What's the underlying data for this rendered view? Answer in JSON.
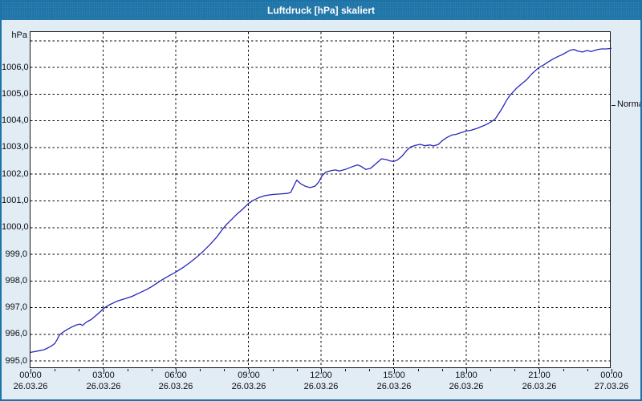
{
  "window": {
    "title": "Luftdruck [hPa] skaliert"
  },
  "colors": {
    "title_bar": "#1d73a7",
    "title_text": "#ffffff",
    "window_bg": "#e2ecf5",
    "plot_bg": "#ffffff",
    "line": "#2727b9",
    "grid": "#000000",
    "axis_frame": "#14141c",
    "label_text": "#0c0c14"
  },
  "chart_data": {
    "type": "line",
    "title": "Luftdruck [hPa] skaliert",
    "xlabel": "",
    "ylabel": "hPa",
    "legend": "none",
    "grid": "dashed",
    "y_axis": {
      "unit_label": "hPa",
      "range_min": 994.7,
      "range_max": 1007.33,
      "gridline_values": [
        995,
        996,
        997,
        998,
        999,
        1000,
        1001,
        1002,
        1003,
        1004,
        1005,
        1006,
        1007
      ],
      "ticks": [
        {
          "value": 995,
          "label": "995,0"
        },
        {
          "value": 996,
          "label": "996,0"
        },
        {
          "value": 997,
          "label": "997,0"
        },
        {
          "value": 998,
          "label": "998,0"
        },
        {
          "value": 999,
          "label": "999,0"
        },
        {
          "value": 1000,
          "label": "1000,0"
        },
        {
          "value": 1001,
          "label": "1001,0"
        },
        {
          "value": 1002,
          "label": "1002,0"
        },
        {
          "value": 1003,
          "label": "1003,0"
        },
        {
          "value": 1004,
          "label": "1004,0"
        },
        {
          "value": 1005,
          "label": "1005,0"
        },
        {
          "value": 1006,
          "label": "1006,0"
        }
      ]
    },
    "x_axis": {
      "hours_span": 24,
      "minor_tick_every_hours": 1,
      "gridline_hours": [
        3,
        6,
        9,
        12,
        15,
        18,
        21
      ],
      "major_ticks": [
        {
          "hour": 0,
          "time": "00:00",
          "date": "26.03.26"
        },
        {
          "hour": 3,
          "time": "03:00",
          "date": "26.03.26"
        },
        {
          "hour": 6,
          "time": "06:00",
          "date": "26.03.26"
        },
        {
          "hour": 9,
          "time": "09:00",
          "date": "26.03.26"
        },
        {
          "hour": 12,
          "time": "12:00",
          "date": "26.03.26"
        },
        {
          "hour": 15,
          "time": "15:00",
          "date": "26.03.26"
        },
        {
          "hour": 18,
          "time": "18:00",
          "date": "26.03.26"
        },
        {
          "hour": 21,
          "time": "21:00",
          "date": "26.03.26"
        },
        {
          "hour": 24,
          "time": "00:00",
          "date": "27.03.26"
        }
      ]
    },
    "normal_marker": {
      "label": "Normal",
      "value": 1004.6
    },
    "series": [
      {
        "name": "Luftdruck",
        "points": [
          [
            0,
            995.32
          ],
          [
            0.3,
            995.37
          ],
          [
            0.55,
            995.42
          ],
          [
            0.7,
            995.48
          ],
          [
            0.85,
            995.55
          ],
          [
            1.0,
            995.65
          ],
          [
            1.1,
            995.8
          ],
          [
            1.2,
            995.98
          ],
          [
            1.35,
            996.08
          ],
          [
            1.5,
            996.17
          ],
          [
            1.7,
            996.27
          ],
          [
            1.9,
            996.35
          ],
          [
            2.05,
            996.38
          ],
          [
            2.15,
            996.33
          ],
          [
            2.3,
            996.45
          ],
          [
            2.5,
            996.55
          ],
          [
            2.7,
            996.7
          ],
          [
            2.85,
            996.82
          ],
          [
            3.0,
            996.95
          ],
          [
            3.1,
            997.02
          ],
          [
            3.3,
            997.12
          ],
          [
            3.6,
            997.25
          ],
          [
            3.9,
            997.33
          ],
          [
            4.2,
            997.42
          ],
          [
            4.5,
            997.55
          ],
          [
            4.8,
            997.68
          ],
          [
            5.0,
            997.78
          ],
          [
            5.2,
            997.9
          ],
          [
            5.4,
            998.02
          ],
          [
            5.6,
            998.13
          ],
          [
            5.8,
            998.23
          ],
          [
            6.0,
            998.33
          ],
          [
            6.3,
            998.5
          ],
          [
            6.6,
            998.7
          ],
          [
            6.9,
            998.92
          ],
          [
            7.1,
            999.08
          ],
          [
            7.4,
            999.35
          ],
          [
            7.7,
            999.65
          ],
          [
            7.9,
            999.9
          ],
          [
            8.1,
            1000.12
          ],
          [
            8.3,
            1000.3
          ],
          [
            8.5,
            1000.48
          ],
          [
            8.75,
            1000.68
          ],
          [
            9.0,
            1000.9
          ],
          [
            9.2,
            1001.02
          ],
          [
            9.45,
            1001.13
          ],
          [
            9.7,
            1001.2
          ],
          [
            10.0,
            1001.24
          ],
          [
            10.3,
            1001.26
          ],
          [
            10.6,
            1001.28
          ],
          [
            10.75,
            1001.32
          ],
          [
            10.9,
            1001.6
          ],
          [
            11.0,
            1001.78
          ],
          [
            11.15,
            1001.65
          ],
          [
            11.35,
            1001.55
          ],
          [
            11.55,
            1001.5
          ],
          [
            11.75,
            1001.55
          ],
          [
            11.9,
            1001.7
          ],
          [
            12.05,
            1001.95
          ],
          [
            12.2,
            1002.08
          ],
          [
            12.4,
            1002.13
          ],
          [
            12.6,
            1002.16
          ],
          [
            12.75,
            1002.12
          ],
          [
            13.0,
            1002.18
          ],
          [
            13.25,
            1002.27
          ],
          [
            13.5,
            1002.35
          ],
          [
            13.65,
            1002.3
          ],
          [
            13.85,
            1002.18
          ],
          [
            14.05,
            1002.22
          ],
          [
            14.25,
            1002.38
          ],
          [
            14.5,
            1002.58
          ],
          [
            14.7,
            1002.55
          ],
          [
            14.85,
            1002.5
          ],
          [
            15.0,
            1002.48
          ],
          [
            15.15,
            1002.53
          ],
          [
            15.35,
            1002.68
          ],
          [
            15.55,
            1002.9
          ],
          [
            15.7,
            1003.02
          ],
          [
            15.9,
            1003.08
          ],
          [
            16.1,
            1003.12
          ],
          [
            16.3,
            1003.07
          ],
          [
            16.5,
            1003.1
          ],
          [
            16.65,
            1003.06
          ],
          [
            16.85,
            1003.12
          ],
          [
            17.0,
            1003.25
          ],
          [
            17.2,
            1003.38
          ],
          [
            17.4,
            1003.47
          ],
          [
            17.6,
            1003.5
          ],
          [
            17.75,
            1003.55
          ],
          [
            18.0,
            1003.62
          ],
          [
            18.2,
            1003.65
          ],
          [
            18.45,
            1003.72
          ],
          [
            18.6,
            1003.78
          ],
          [
            18.8,
            1003.85
          ],
          [
            19.0,
            1003.95
          ],
          [
            19.2,
            1004.08
          ],
          [
            19.35,
            1004.28
          ],
          [
            19.5,
            1004.5
          ],
          [
            19.65,
            1004.75
          ],
          [
            19.8,
            1004.95
          ],
          [
            19.95,
            1005.1
          ],
          [
            20.1,
            1005.25
          ],
          [
            20.3,
            1005.4
          ],
          [
            20.5,
            1005.55
          ],
          [
            20.7,
            1005.75
          ],
          [
            20.85,
            1005.88
          ],
          [
            21.0,
            1006.0
          ],
          [
            21.2,
            1006.1
          ],
          [
            21.4,
            1006.22
          ],
          [
            21.6,
            1006.33
          ],
          [
            21.8,
            1006.42
          ],
          [
            22.0,
            1006.5
          ],
          [
            22.15,
            1006.58
          ],
          [
            22.3,
            1006.65
          ],
          [
            22.45,
            1006.68
          ],
          [
            22.6,
            1006.62
          ],
          [
            22.8,
            1006.58
          ],
          [
            23.0,
            1006.64
          ],
          [
            23.15,
            1006.6
          ],
          [
            23.3,
            1006.64
          ],
          [
            23.45,
            1006.68
          ],
          [
            23.6,
            1006.7
          ],
          [
            23.8,
            1006.7
          ],
          [
            24.0,
            1006.72
          ]
        ]
      }
    ]
  }
}
